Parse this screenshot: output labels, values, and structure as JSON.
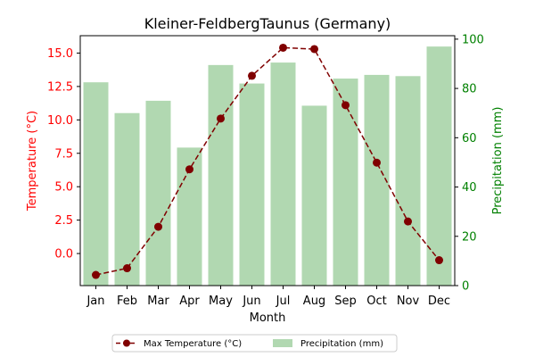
{
  "chart_data": {
    "type": "bar+line",
    "title": "Kleiner-FeldbergTaunus (Germany)",
    "xlabel": "Month",
    "categories": [
      "Jan",
      "Feb",
      "Mar",
      "Apr",
      "May",
      "Jun",
      "Jul",
      "Aug",
      "Sep",
      "Oct",
      "Nov",
      "Dec"
    ],
    "left_axis": {
      "label": "Temperature (°C)",
      "color": "#ff0000",
      "ylim": [
        -2.4,
        16.3
      ],
      "ticks": [
        "0.0",
        "2.5",
        "5.0",
        "7.5",
        "10.0",
        "12.5",
        "15.0"
      ]
    },
    "right_axis": {
      "label": "Precipitation (mm)",
      "color": "#008000",
      "ylim": [
        0,
        101.4
      ],
      "ticks": [
        "0",
        "20",
        "40",
        "60",
        "80",
        "100"
      ]
    },
    "series": [
      {
        "name": "Max Temperature (°C)",
        "type": "line",
        "axis": "left",
        "color": "#800000",
        "marker": "circle",
        "linestyle": "dashed",
        "values": [
          -1.6,
          -1.1,
          2.0,
          6.3,
          10.1,
          13.3,
          15.4,
          15.3,
          11.1,
          6.8,
          2.4,
          -0.5
        ]
      },
      {
        "name": "Precipitation (mm)",
        "type": "bar",
        "axis": "right",
        "color": "#b1d8b1",
        "values": [
          82.5,
          70,
          75,
          56,
          89.5,
          82,
          90.5,
          73,
          84,
          85.5,
          85,
          97
        ]
      }
    ],
    "legend": {
      "position": "bottom-center",
      "entries": [
        "Max Temperature (°C)",
        "Precipitation (mm)"
      ]
    }
  }
}
